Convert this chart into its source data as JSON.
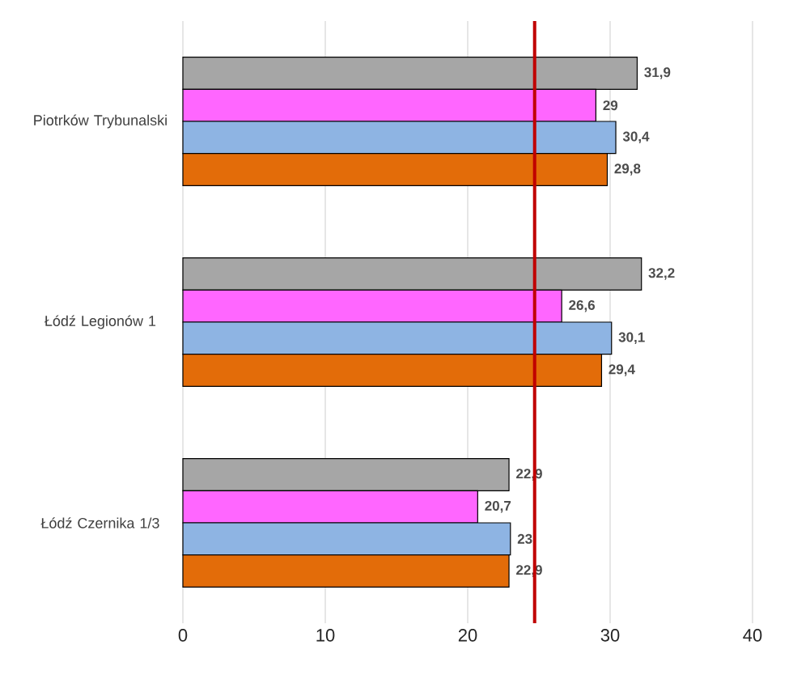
{
  "chart_data": {
    "type": "bar",
    "orientation": "horizontal",
    "categories": [
      "Piotrków Trybunalski",
      "Łódź Legionów 1",
      "Łódź Czernika 1/3"
    ],
    "series": [
      {
        "color": "#a6a6a6",
        "values": [
          31.9,
          32.2,
          22.9
        ],
        "value_labels": [
          "31,9",
          "32,2",
          "22,9"
        ]
      },
      {
        "color": "#ff66ff",
        "values": [
          29,
          26.6,
          20.7
        ],
        "value_labels": [
          "29",
          "26,6",
          "20,7"
        ]
      },
      {
        "color": "#8eb4e3",
        "values": [
          30.4,
          30.1,
          23
        ],
        "value_labels": [
          "30,4",
          "30,1",
          "23"
        ]
      },
      {
        "color": "#e36c09",
        "values": [
          29.8,
          29.4,
          22.9
        ],
        "value_labels": [
          "29,8",
          "29,4",
          "22,9"
        ]
      }
    ],
    "xlim": [
      0,
      40
    ],
    "xticks": [
      0,
      10,
      20,
      30,
      40
    ],
    "grid": "x",
    "ref_lines": [
      {
        "axis": "x",
        "value": 24.7,
        "color": "#c00000"
      }
    ]
  }
}
